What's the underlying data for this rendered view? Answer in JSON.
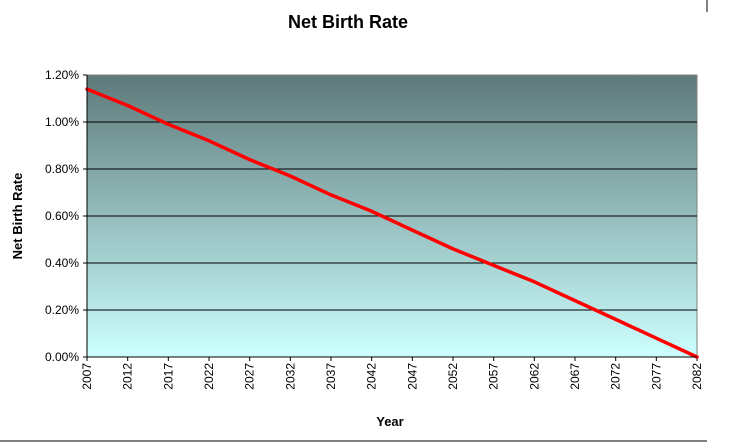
{
  "chart_data": {
    "type": "line",
    "title": "Net Birth Rate",
    "xlabel": "Year",
    "ylabel": "Net Birth Rate",
    "x_ticks": [
      "2007",
      "2012",
      "2017",
      "2022",
      "2027",
      "2032",
      "2037",
      "2042",
      "2047",
      "2052",
      "2057",
      "2062",
      "2067",
      "2072",
      "2077",
      "2082"
    ],
    "y_ticks": [
      "0.00%",
      "0.20%",
      "0.40%",
      "0.60%",
      "0.80%",
      "1.00%",
      "1.20%"
    ],
    "ylim": [
      0,
      1.2
    ],
    "xlim": [
      2007,
      2082
    ],
    "grid": true,
    "legend": "none",
    "colors": {
      "line": "#ff0000",
      "plot_top": "#5e7a7a",
      "plot_bottom": "#ccffff"
    },
    "series": [
      {
        "values": [
          {
            "x": 2007,
            "y": 1.14
          },
          {
            "x": 2012,
            "y": 1.07
          },
          {
            "x": 2017,
            "y": 0.99
          },
          {
            "x": 2022,
            "y": 0.92
          },
          {
            "x": 2027,
            "y": 0.84
          },
          {
            "x": 2032,
            "y": 0.77
          },
          {
            "x": 2037,
            "y": 0.69
          },
          {
            "x": 2042,
            "y": 0.62
          },
          {
            "x": 2047,
            "y": 0.54
          },
          {
            "x": 2052,
            "y": 0.46
          },
          {
            "x": 2057,
            "y": 0.39
          },
          {
            "x": 2062,
            "y": 0.32
          },
          {
            "x": 2067,
            "y": 0.24
          },
          {
            "x": 2072,
            "y": 0.16
          },
          {
            "x": 2077,
            "y": 0.08
          },
          {
            "x": 2082,
            "y": 0.0
          }
        ]
      }
    ]
  }
}
